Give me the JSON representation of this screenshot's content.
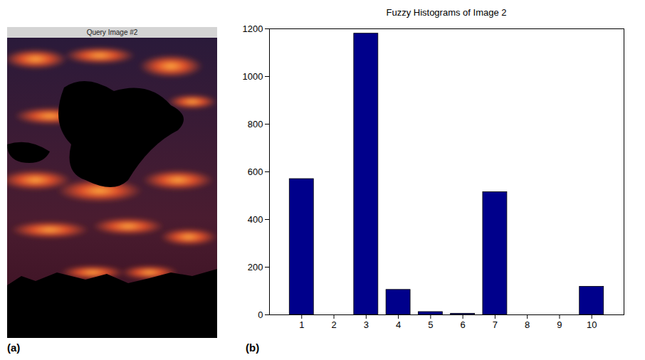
{
  "image_panel": {
    "letter": "(a)",
    "title": "Query Image #2"
  },
  "chart_data": {
    "letter": "(b)",
    "type": "bar",
    "title": "Fuzzy Histograms of Image 2",
    "x": [
      1,
      2,
      3,
      4,
      5,
      6,
      7,
      8,
      9,
      10
    ],
    "values": [
      570,
      0,
      1180,
      105,
      12,
      5,
      515,
      0,
      0,
      118
    ],
    "color": "#00008b",
    "xlim": [
      0,
      11
    ],
    "xticks": [
      1,
      2,
      3,
      4,
      5,
      6,
      7,
      8,
      9,
      10
    ],
    "ylim": [
      0,
      1200
    ],
    "yticks": [
      0,
      200,
      400,
      600,
      800,
      1000,
      1200
    ],
    "grid": false
  }
}
